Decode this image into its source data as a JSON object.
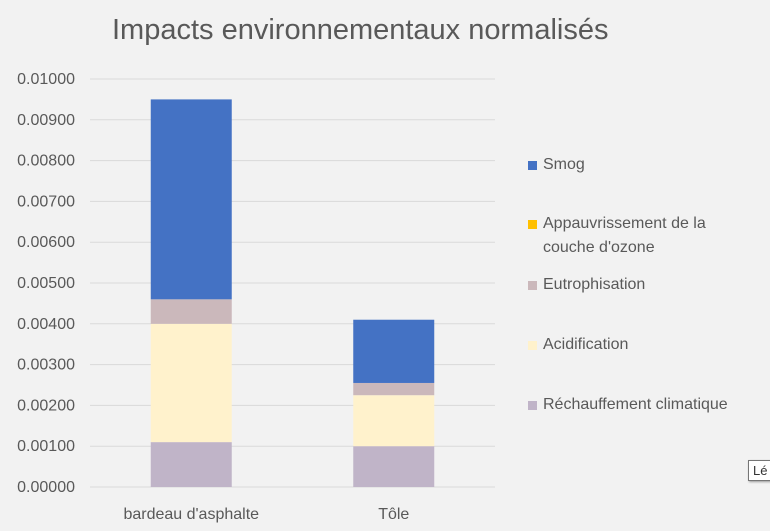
{
  "chart_data": {
    "type": "bar",
    "stacked": true,
    "title": "Impacts environnementaux normalisés",
    "xlabel": "",
    "ylabel": "",
    "categories": [
      "bardeau d'asphalte",
      "Tôle"
    ],
    "ylim": [
      0,
      0.01
    ],
    "yticks": [
      "0.00000",
      "0.00100",
      "0.00200",
      "0.00300",
      "0.00400",
      "0.00500",
      "0.00600",
      "0.00700",
      "0.00800",
      "0.00900",
      "0.01000"
    ],
    "grid": true,
    "legend_position": "right",
    "series": [
      {
        "name": "Réchauffement climatique",
        "color": "#c0b4c8",
        "values": [
          0.0011,
          0.001
        ]
      },
      {
        "name": "Acidification",
        "color": "#fff2cc",
        "values": [
          0.0029,
          0.00125
        ]
      },
      {
        "name": "Eutrophisation",
        "color": "#cbb8bb",
        "values": [
          0.0006,
          0.0003
        ]
      },
      {
        "name": "Appauvrissement de la couche d'ozone",
        "color": "#ffc000",
        "values": [
          0.0,
          0.0
        ]
      },
      {
        "name": "Smog",
        "color": "#4472c4",
        "values": [
          0.0049,
          0.00155
        ]
      }
    ]
  },
  "legend_lines": {
    "smog": [
      "Smog"
    ],
    "ozone": [
      "Appauvrissement de la",
      "couche d'ozone"
    ],
    "eutro": [
      "Eutrophisation"
    ],
    "acid": [
      "Acidification"
    ],
    "rech": [
      "Réchauffement climatique"
    ]
  },
  "tooltip": "Lé"
}
